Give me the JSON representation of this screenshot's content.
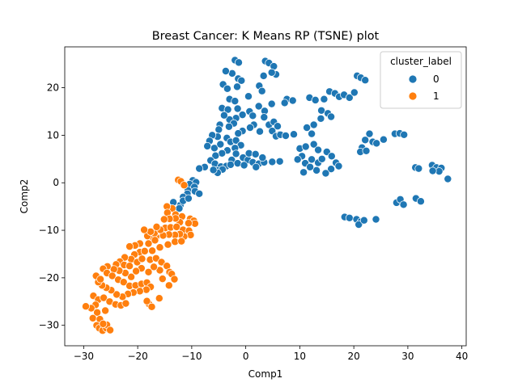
{
  "chart_data": {
    "type": "scatter",
    "title": "Breast Cancer: K Means RP (TSNE) plot",
    "xlabel": "Comp1",
    "ylabel": "Comp2",
    "xlim": [
      -33.5,
      40.8
    ],
    "ylim": [
      -34.3,
      28.6
    ],
    "xticks": [
      -30,
      -20,
      -10,
      0,
      10,
      20,
      30,
      40
    ],
    "yticks": [
      -30,
      -20,
      -10,
      0,
      10,
      20
    ],
    "grid": false,
    "legend": {
      "title": "cluster_label",
      "position": "top-right"
    },
    "series": [
      {
        "name": "0",
        "color": "#1f77b4",
        "points": [
          [
            -2.0,
            25.8
          ],
          [
            -1.3,
            25.3
          ],
          [
            3.6,
            25.6
          ],
          [
            4.3,
            25.2
          ],
          [
            5.2,
            24.5
          ],
          [
            -2.5,
            23.0
          ],
          [
            -3.7,
            23.5
          ],
          [
            -1.4,
            21.9
          ],
          [
            -0.8,
            21.5
          ],
          [
            3.3,
            22.5
          ],
          [
            5.6,
            22.8
          ],
          [
            4.8,
            23.2
          ],
          [
            -4.2,
            20.7
          ],
          [
            -3.4,
            19.8
          ],
          [
            -1.6,
            20.2
          ],
          [
            2.5,
            20.4
          ],
          [
            3.0,
            19.3
          ],
          [
            -3.0,
            17.6
          ],
          [
            -2.0,
            17.2
          ],
          [
            0.5,
            18.2
          ],
          [
            -4.4,
            15.7
          ],
          [
            -3.3,
            15.4
          ],
          [
            -1.5,
            15.6
          ],
          [
            -0.6,
            14.3
          ],
          [
            -1.8,
            13.6
          ],
          [
            -3.0,
            13.3
          ],
          [
            -4.0,
            14.2
          ],
          [
            -2.2,
            12.5
          ],
          [
            -3.1,
            11.8
          ],
          [
            -4.8,
            12.2
          ],
          [
            0.7,
            15.0
          ],
          [
            1.3,
            14.1
          ],
          [
            2.4,
            16.1
          ],
          [
            3.5,
            15.1
          ],
          [
            4.8,
            16.6
          ],
          [
            3.4,
            13.8
          ],
          [
            1.5,
            12.2
          ],
          [
            0.8,
            11.6
          ],
          [
            -0.6,
            10.9
          ],
          [
            -1.4,
            10.4
          ],
          [
            2.6,
            10.8
          ],
          [
            4.3,
            12.2
          ],
          [
            5.2,
            12.8
          ],
          [
            5.9,
            11.9
          ],
          [
            4.9,
            10.9
          ],
          [
            6.3,
            10.2
          ],
          [
            5.6,
            9.8
          ],
          [
            -5.0,
            11.2
          ],
          [
            -5.2,
            9.7
          ],
          [
            -6.2,
            10.0
          ],
          [
            -6.7,
            8.8
          ],
          [
            -7.1,
            7.7
          ],
          [
            -5.8,
            7.3
          ],
          [
            -4.7,
            8.1
          ],
          [
            -3.5,
            9.4
          ],
          [
            -2.8,
            8.6
          ],
          [
            -1.8,
            8.9
          ],
          [
            -0.9,
            7.9
          ],
          [
            -2.0,
            7.3
          ],
          [
            -3.4,
            6.8
          ],
          [
            -4.4,
            6.2
          ],
          [
            -5.6,
            5.7
          ],
          [
            -6.5,
            4.7
          ],
          [
            -7.6,
            3.3
          ],
          [
            -5.7,
            4.0
          ],
          [
            -4.6,
            3.4
          ],
          [
            -3.6,
            3.5
          ],
          [
            -2.6,
            4.8
          ],
          [
            -1.8,
            6.1
          ],
          [
            -0.5,
            5.3
          ],
          [
            0.4,
            4.8
          ],
          [
            1.3,
            4.3
          ],
          [
            2.4,
            4.0
          ],
          [
            3.4,
            4.3
          ],
          [
            -5.3,
            2.6
          ],
          [
            -4.3,
            2.8
          ],
          [
            -5.2,
            2.1
          ],
          [
            -6.0,
            2.7
          ],
          [
            -2.8,
            3.8
          ],
          [
            -1.5,
            4.1
          ],
          [
            -0.3,
            3.7
          ],
          [
            1.9,
            3.3
          ],
          [
            0.6,
            6.2
          ],
          [
            1.8,
            6.0
          ],
          [
            3.1,
            5.3
          ],
          [
            4.9,
            4.4
          ],
          [
            6.3,
            4.5
          ],
          [
            7.6,
            17.6
          ],
          [
            7.2,
            16.8
          ],
          [
            8.7,
            17.3
          ],
          [
            11.8,
            17.9
          ],
          [
            12.9,
            17.4
          ],
          [
            14.5,
            17.6
          ],
          [
            15.5,
            19.2
          ],
          [
            16.5,
            18.8
          ],
          [
            17.3,
            18.1
          ],
          [
            18.2,
            18.5
          ],
          [
            19.2,
            17.9
          ],
          [
            20.1,
            19.0
          ],
          [
            20.6,
            22.5
          ],
          [
            21.3,
            22.1
          ],
          [
            22.1,
            21.6
          ],
          [
            14.0,
            15.2
          ],
          [
            15.2,
            14.6
          ],
          [
            15.8,
            13.9
          ],
          [
            13.9,
            13.5
          ],
          [
            12.6,
            12.2
          ],
          [
            11.3,
            11.6
          ],
          [
            12.2,
            10.3
          ],
          [
            6.4,
            10.1
          ],
          [
            7.4,
            9.9
          ],
          [
            8.9,
            10.2
          ],
          [
            10.0,
            7.2
          ],
          [
            11.1,
            7.6
          ],
          [
            12.6,
            8.1
          ],
          [
            13.4,
            6.9
          ],
          [
            10.4,
            5.6
          ],
          [
            9.6,
            4.9
          ],
          [
            11.0,
            4.1
          ],
          [
            12.2,
            4.9
          ],
          [
            13.4,
            4.2
          ],
          [
            14.1,
            5.0
          ],
          [
            15.0,
            6.5
          ],
          [
            15.9,
            5.6
          ],
          [
            16.7,
            4.2
          ],
          [
            17.2,
            3.5
          ],
          [
            15.8,
            2.9
          ],
          [
            14.8,
            2.0
          ],
          [
            13.1,
            2.6
          ],
          [
            11.9,
            3.3
          ],
          [
            10.7,
            2.2
          ],
          [
            22.9,
            10.3
          ],
          [
            22.1,
            9.0
          ],
          [
            23.5,
            8.6
          ],
          [
            21.5,
            7.4
          ],
          [
            21.2,
            6.5
          ],
          [
            22.3,
            6.7
          ],
          [
            24.2,
            8.3
          ],
          [
            25.5,
            9.1
          ],
          [
            27.6,
            10.3
          ],
          [
            28.5,
            10.4
          ],
          [
            29.3,
            10.1
          ],
          [
            18.3,
            -7.2
          ],
          [
            19.2,
            -7.4
          ],
          [
            20.5,
            -7.7
          ],
          [
            21.3,
            -8.2
          ],
          [
            20.9,
            -8.8
          ],
          [
            21.9,
            -7.9
          ],
          [
            24.1,
            -7.7
          ],
          [
            27.9,
            -4.2
          ],
          [
            28.6,
            -3.5
          ],
          [
            29.2,
            -4.6
          ],
          [
            31.5,
            -3.3
          ],
          [
            32.4,
            -3.9
          ],
          [
            31.4,
            3.2
          ],
          [
            32.0,
            3.0
          ],
          [
            34.5,
            3.7
          ],
          [
            35.3,
            3.2
          ],
          [
            36.2,
            3.1
          ],
          [
            35.8,
            2.4
          ],
          [
            34.6,
            2.5
          ],
          [
            37.4,
            0.8
          ],
          [
            -8.6,
            3.0
          ],
          [
            -9.8,
            0.5
          ],
          [
            -9.2,
            0.1
          ],
          [
            -10.4,
            -0.3
          ],
          [
            -9.5,
            -0.9
          ],
          [
            -10.7,
            -1.6
          ],
          [
            -9.4,
            -1.8
          ],
          [
            -8.6,
            -2.3
          ],
          [
            -10.8,
            -2.3
          ],
          [
            -11.6,
            -3.0
          ],
          [
            -12.1,
            -4.7
          ],
          [
            -13.4,
            -4.1
          ],
          [
            -12.3,
            -5.4
          ],
          [
            -11.6,
            -3.8
          ],
          [
            -10.6,
            -3.3
          ]
        ]
      },
      {
        "name": "1",
        "color": "#ff7f0e",
        "points": [
          [
            -12.5,
            0.6
          ],
          [
            -12.0,
            0.3
          ],
          [
            -11.4,
            -0.5
          ],
          [
            -13.6,
            -5.4
          ],
          [
            -14.6,
            -5.0
          ],
          [
            -14.5,
            -6.3
          ],
          [
            -13.0,
            -6.7
          ],
          [
            -11.8,
            -7.1
          ],
          [
            -10.3,
            -7.6
          ],
          [
            -9.6,
            -8.0
          ],
          [
            -9.4,
            -8.6
          ],
          [
            -10.6,
            -8.5
          ],
          [
            -12.2,
            -8.3
          ],
          [
            -13.0,
            -7.5
          ],
          [
            -14.1,
            -7.6
          ],
          [
            -15.1,
            -7.7
          ],
          [
            -14.9,
            -9.5
          ],
          [
            -13.9,
            -9.4
          ],
          [
            -12.8,
            -9.3
          ],
          [
            -11.6,
            -9.9
          ],
          [
            -10.5,
            -10.1
          ],
          [
            -10.2,
            -11.0
          ],
          [
            -11.4,
            -11.3
          ],
          [
            -12.2,
            -10.8
          ],
          [
            -13.1,
            -11.0
          ],
          [
            -14.2,
            -10.9
          ],
          [
            -15.3,
            -11.1
          ],
          [
            -16.6,
            -11.4
          ],
          [
            -17.4,
            -11.3
          ],
          [
            -18.2,
            -11.2
          ],
          [
            -16.9,
            -10.6
          ],
          [
            -15.8,
            -9.9
          ],
          [
            -16.5,
            -9.3
          ],
          [
            -17.6,
            -10.3
          ],
          [
            -18.8,
            -9.9
          ],
          [
            -16.8,
            -12.1
          ],
          [
            -18.0,
            -12.8
          ],
          [
            -19.6,
            -12.8
          ],
          [
            -20.5,
            -13.2
          ],
          [
            -21.5,
            -13.4
          ],
          [
            -19.6,
            -14.6
          ],
          [
            -18.7,
            -14.4
          ],
          [
            -17.3,
            -14.3
          ],
          [
            -15.9,
            -13.6
          ],
          [
            -14.4,
            -13.0
          ],
          [
            -13.1,
            -12.4
          ],
          [
            -11.9,
            -12.3
          ],
          [
            -20.6,
            -15.1
          ],
          [
            -21.2,
            -16.1
          ],
          [
            -22.4,
            -15.7
          ],
          [
            -23.3,
            -16.6
          ],
          [
            -24.0,
            -17.2
          ],
          [
            -22.5,
            -17.3
          ],
          [
            -21.5,
            -17.5
          ],
          [
            -20.1,
            -16.7
          ],
          [
            -19.2,
            -16.0
          ],
          [
            -17.7,
            -16.2
          ],
          [
            -16.6,
            -15.9
          ],
          [
            -15.6,
            -16.7
          ],
          [
            -14.6,
            -17.5
          ],
          [
            -15.9,
            -18.4
          ],
          [
            -17.0,
            -17.7
          ],
          [
            -14.1,
            -18.8
          ],
          [
            -13.7,
            -19.2
          ],
          [
            -18.0,
            -18.8
          ],
          [
            -19.3,
            -18.0
          ],
          [
            -20.3,
            -18.6
          ],
          [
            -21.2,
            -19.8
          ],
          [
            -22.3,
            -19.0
          ],
          [
            -23.4,
            -18.5
          ],
          [
            -24.4,
            -18.2
          ],
          [
            -25.6,
            -17.6
          ],
          [
            -26.4,
            -18.1
          ],
          [
            -25.7,
            -19.0
          ],
          [
            -24.7,
            -19.6
          ],
          [
            -23.6,
            -20.4
          ],
          [
            -22.6,
            -20.9
          ],
          [
            -21.5,
            -21.7
          ],
          [
            -20.4,
            -21.6
          ],
          [
            -19.3,
            -21.3
          ],
          [
            -18.3,
            -21.0
          ],
          [
            -17.6,
            -21.9
          ],
          [
            -18.4,
            -22.5
          ],
          [
            -19.6,
            -22.8
          ],
          [
            -20.8,
            -23.1
          ],
          [
            -21.8,
            -23.4
          ],
          [
            -22.8,
            -24.0
          ],
          [
            -23.9,
            -23.5
          ],
          [
            -24.9,
            -22.6
          ],
          [
            -25.8,
            -22.1
          ],
          [
            -26.6,
            -21.6
          ],
          [
            -27.3,
            -20.9
          ],
          [
            -27.7,
            -19.6
          ],
          [
            -26.9,
            -20.3
          ],
          [
            -28.2,
            -23.8
          ],
          [
            -27.3,
            -24.6
          ],
          [
            -26.3,
            -24.2
          ],
          [
            -25.2,
            -25.0
          ],
          [
            -24.1,
            -25.6
          ],
          [
            -23.1,
            -25.8
          ],
          [
            -22.2,
            -25.4
          ],
          [
            -27.8,
            -25.7
          ],
          [
            -28.6,
            -26.4
          ],
          [
            -29.6,
            -26.0
          ],
          [
            -27.5,
            -27.3
          ],
          [
            -28.3,
            -28.5
          ],
          [
            -27.0,
            -28.7
          ],
          [
            -26.0,
            -26.9
          ],
          [
            -27.6,
            -30.0
          ],
          [
            -27.1,
            -30.6
          ],
          [
            -26.5,
            -31.1
          ],
          [
            -25.8,
            -30.6
          ],
          [
            -25.7,
            -29.9
          ],
          [
            -26.4,
            -29.7
          ],
          [
            -25.1,
            -31.0
          ],
          [
            -17.9,
            -25.5
          ],
          [
            -17.4,
            -26.1
          ],
          [
            -18.3,
            -24.9
          ],
          [
            -16.0,
            -24.3
          ],
          [
            -14.2,
            -21.6
          ],
          [
            -13.2,
            -20.3
          ],
          [
            -15.4,
            -20.2
          ]
        ]
      }
    ]
  }
}
